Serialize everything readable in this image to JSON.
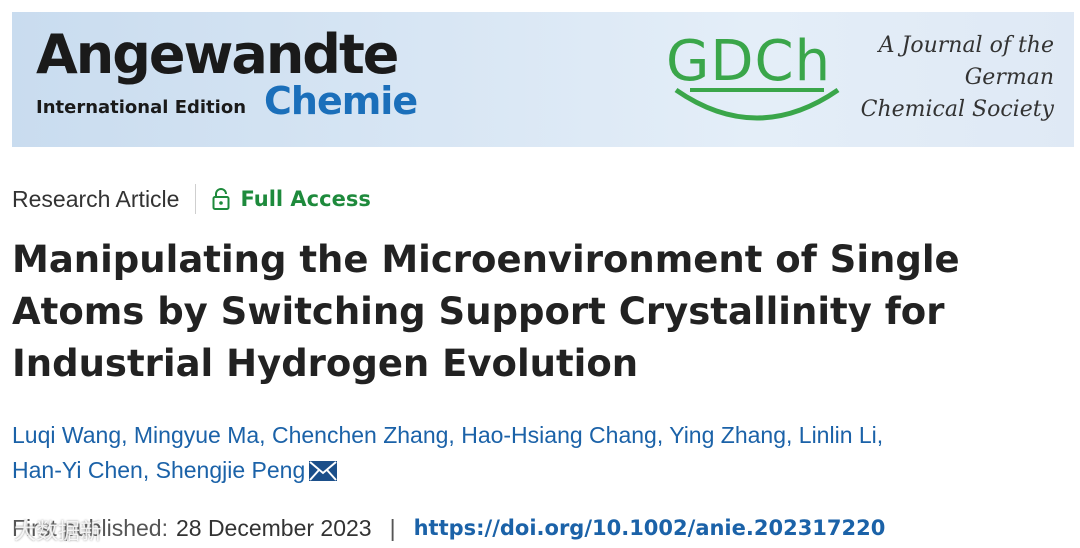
{
  "banner": {
    "journal_name": "Angewandte",
    "edition": "International Edition",
    "journal_sub": "Chemie",
    "society_logo": "GDCh",
    "society_lines": [
      "A Journal of the",
      "German",
      "Chemical Society"
    ]
  },
  "meta": {
    "article_type": "Research Article",
    "access_label": "Full Access",
    "access_icon": "lock-open-icon"
  },
  "article": {
    "title": "Manipulating the Microenvironment of Single Atoms by Switching Support Crystallinity for Industrial Hydrogen Evolution",
    "authors": [
      "Luqi Wang",
      "Mingyue Ma",
      "Chenchen Zhang",
      "Hao-Hsiang Chang",
      "Ying Zhang",
      "Linlin Li",
      "Han-Yi Chen",
      "Shengjie Peng"
    ],
    "published_label": "First published:",
    "published_date": "28 December 2023",
    "doi": "https://doi.org/10.1002/anie.202317220"
  },
  "watermark": "大数据新",
  "colors": {
    "link": "#1b62a8",
    "access": "#1e8a3c",
    "chemie": "#1b6fba",
    "gdch": "#3aa64a"
  }
}
